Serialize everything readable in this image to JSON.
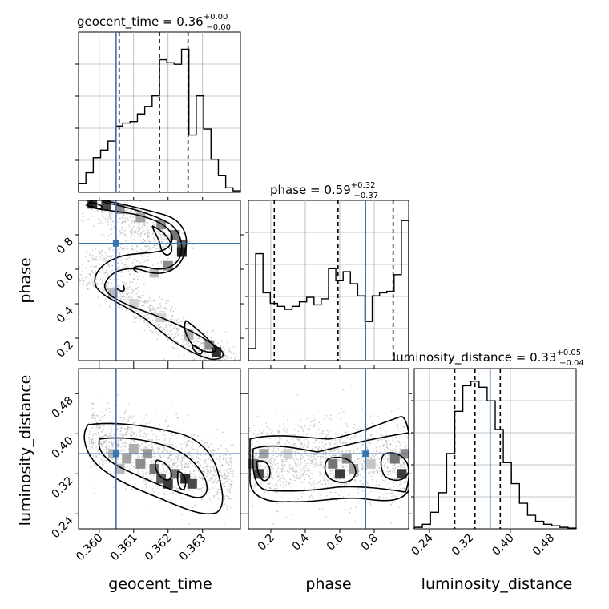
{
  "figure": {
    "titles": {
      "geocent_time": {
        "name": "geocent_time",
        "value": "0.36",
        "plus": "+0.00",
        "minus": "−0.00"
      },
      "phase": {
        "name": "phase",
        "value": "0.59",
        "plus": "+0.32",
        "minus": "−0.37"
      },
      "luminosity_distance": {
        "name": "luminosity_distance",
        "value": "0.33",
        "plus": "+0.05",
        "minus": "−0.04"
      }
    },
    "axis_labels": {
      "geocent_time": "geocent_time",
      "phase": "phase",
      "luminosity_distance": "luminosity_distance"
    },
    "colors": {
      "truth": "#3a75b0",
      "hist": "#000000",
      "grid": "#b0b0b0"
    }
  },
  "chart_data": {
    "type": "corner",
    "parameters": [
      "geocent_time",
      "phase",
      "luminosity_distance"
    ],
    "ranges": {
      "geocent_time": [
        0.3594,
        0.3641
      ],
      "phase": [
        0.07,
        1.0
      ],
      "luminosity_distance": [
        0.21,
        0.53
      ]
    },
    "ticks": {
      "geocent_time": [
        0.36,
        0.361,
        0.362,
        0.363
      ],
      "phase": [
        0.2,
        0.4,
        0.6,
        0.8
      ],
      "luminosity_distance": [
        0.24,
        0.32,
        0.4,
        0.48
      ]
    },
    "tick_labels": {
      "geocent_time": [
        "0.360",
        "0.361",
        "0.362",
        "0.363"
      ],
      "phase": [
        "0.2",
        "0.4",
        "0.6",
        "0.8"
      ],
      "luminosity_distance": [
        "0.24",
        "0.32",
        "0.40",
        "0.48"
      ]
    },
    "truths": {
      "geocent_time": 0.36049,
      "phase": 0.75,
      "luminosity_distance": 0.36
    },
    "quantiles": {
      "geocent_time": [
        0.36058,
        0.36175,
        0.36258
      ],
      "phase": [
        0.22,
        0.59,
        0.91
      ],
      "luminosity_distance": [
        0.29,
        0.33,
        0.38
      ]
    },
    "histograms": {
      "geocent_time": {
        "edges_start": 0.3594,
        "edges_end": 0.3641,
        "counts": [
          0.06,
          0.13,
          0.23,
          0.28,
          0.34,
          0.44,
          0.46,
          0.47,
          0.52,
          0.57,
          0.64,
          0.88,
          0.86,
          0.85,
          0.95,
          0.38,
          0.64,
          0.42,
          0.22,
          0.11,
          0.03,
          0.01
        ]
      },
      "phase": {
        "edges_start": 0.07,
        "edges_end": 1.0,
        "counts": [
          0.08,
          0.71,
          0.45,
          0.38,
          0.36,
          0.34,
          0.36,
          0.39,
          0.42,
          0.37,
          0.41,
          0.61,
          0.53,
          0.59,
          0.51,
          0.43,
          0.26,
          0.43,
          0.45,
          0.46,
          0.57,
          0.93
        ]
      },
      "luminosity_distance": {
        "edges_start": 0.21,
        "edges_end": 0.53,
        "counts": [
          0.01,
          0.03,
          0.11,
          0.24,
          0.5,
          0.78,
          0.95,
          0.98,
          0.94,
          0.85,
          0.66,
          0.44,
          0.3,
          0.17,
          0.09,
          0.05,
          0.03,
          0.02,
          0.01,
          0.005
        ]
      }
    },
    "panels": [
      "geocent_time-phase",
      "geocent_time-luminosity_distance",
      "phase-luminosity_distance"
    ]
  }
}
